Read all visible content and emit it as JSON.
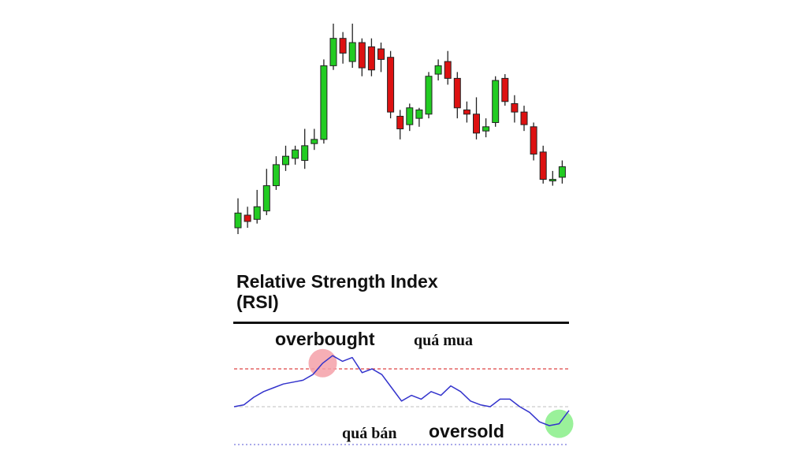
{
  "chart_data": [
    {
      "type": "candlestick",
      "title": "",
      "xlabel": "",
      "ylabel": "",
      "grid": false,
      "up_color": "#22cc22",
      "down_color": "#dd1111",
      "ylim": [
        0,
        100
      ],
      "candles": [
        {
          "open": 6,
          "close": 13,
          "high": 20,
          "low": 3
        },
        {
          "open": 12,
          "close": 9,
          "high": 16,
          "low": 6
        },
        {
          "open": 10,
          "close": 16,
          "high": 24,
          "low": 8
        },
        {
          "open": 14,
          "close": 26,
          "high": 34,
          "low": 12
        },
        {
          "open": 26,
          "close": 36,
          "high": 40,
          "low": 24
        },
        {
          "open": 36,
          "close": 40,
          "high": 45,
          "low": 33
        },
        {
          "open": 39,
          "close": 43,
          "high": 45,
          "low": 36
        },
        {
          "open": 38,
          "close": 45,
          "high": 53,
          "low": 34
        },
        {
          "open": 46,
          "close": 48,
          "high": 53,
          "low": 43
        },
        {
          "open": 48,
          "close": 83,
          "high": 86,
          "low": 46
        },
        {
          "open": 83,
          "close": 96,
          "high": 103,
          "low": 81
        },
        {
          "open": 96,
          "close": 89,
          "high": 99,
          "low": 84
        },
        {
          "open": 85,
          "close": 94,
          "high": 103,
          "low": 82
        },
        {
          "open": 94,
          "close": 82,
          "high": 96,
          "low": 78
        },
        {
          "open": 92,
          "close": 81,
          "high": 96,
          "low": 78
        },
        {
          "open": 91,
          "close": 86,
          "high": 94,
          "low": 80
        },
        {
          "open": 87,
          "close": 61,
          "high": 90,
          "low": 58
        },
        {
          "open": 59,
          "close": 53,
          "high": 62,
          "low": 48
        },
        {
          "open": 55,
          "close": 63,
          "high": 65,
          "low": 52
        },
        {
          "open": 58,
          "close": 62,
          "high": 63,
          "low": 54
        },
        {
          "open": 60,
          "close": 78,
          "high": 80,
          "low": 58
        },
        {
          "open": 79,
          "close": 83,
          "high": 86,
          "low": 76
        },
        {
          "open": 85,
          "close": 77,
          "high": 90,
          "low": 74
        },
        {
          "open": 77,
          "close": 63,
          "high": 80,
          "low": 58
        },
        {
          "open": 62,
          "close": 60,
          "high": 66,
          "low": 56
        },
        {
          "open": 60,
          "close": 51,
          "high": 68,
          "low": 48
        },
        {
          "open": 52,
          "close": 54,
          "high": 58,
          "low": 49
        },
        {
          "open": 56,
          "close": 76,
          "high": 78,
          "low": 54
        },
        {
          "open": 77,
          "close": 66,
          "high": 79,
          "low": 64
        },
        {
          "open": 65,
          "close": 61,
          "high": 69,
          "low": 56
        },
        {
          "open": 61,
          "close": 55,
          "high": 64,
          "low": 52
        },
        {
          "open": 54,
          "close": 41,
          "high": 56,
          "low": 38
        },
        {
          "open": 42,
          "close": 29,
          "high": 45,
          "low": 27
        },
        {
          "open": 29,
          "close": 29,
          "high": 33,
          "low": 26
        },
        {
          "open": 30,
          "close": 35,
          "high": 38,
          "low": 27
        }
      ]
    },
    {
      "type": "line",
      "title": "Relative Strength Index\n(RSI)",
      "xlabel": "",
      "ylabel": "",
      "ylim": [
        0,
        100
      ],
      "grid": false,
      "line_color": "#3333cc",
      "levels": [
        {
          "value": 70,
          "color": "#dd4444",
          "style": "dashed"
        },
        {
          "value": 50,
          "color": "#cccccc",
          "style": "dashed"
        },
        {
          "value": 30,
          "color": "#7777dd",
          "style": "dotted"
        }
      ],
      "series": [
        {
          "values": [
            50,
            51,
            55,
            58,
            60,
            62,
            63,
            64,
            67,
            73,
            77,
            74,
            76,
            68,
            70,
            67,
            60,
            53,
            56,
            54,
            58,
            56,
            61,
            58,
            53,
            51,
            50,
            54,
            54,
            50,
            47,
            42,
            40,
            41,
            48
          ]
        }
      ],
      "annotations": [
        {
          "text": "overbought",
          "lang": "en",
          "marker_index": 9,
          "marker_color": "#f5a0a8"
        },
        {
          "text": "quá mua",
          "lang": "vi"
        },
        {
          "text": "quá bán",
          "lang": "vi"
        },
        {
          "text": "oversold",
          "lang": "en",
          "marker_index": 33,
          "marker_color": "#88ee88"
        }
      ]
    }
  ]
}
